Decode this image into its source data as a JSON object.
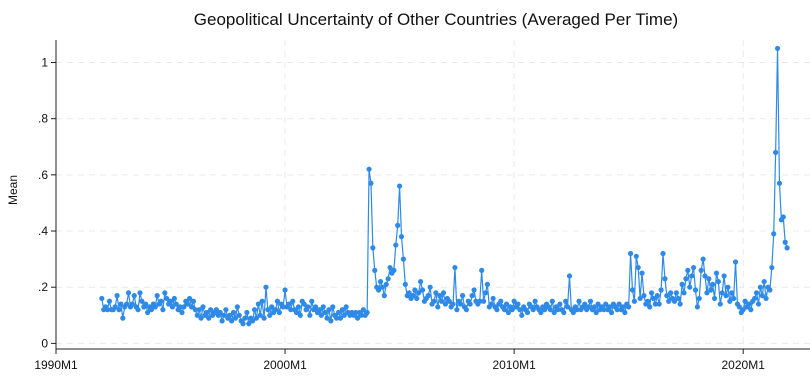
{
  "chart_data": {
    "type": "line",
    "title": "Geopolitical Uncertainty of Other Countries (Averaged Per Time)",
    "xlabel": "",
    "ylabel": "Mean",
    "x_tick_labels": [
      "1990M1",
      "2000M1",
      "2010M1",
      "2020M1"
    ],
    "y_tick_labels": [
      "0",
      ".2",
      ".4",
      ".6",
      ".8",
      "1"
    ],
    "xlim": [
      "1990-01",
      "2022-12"
    ],
    "ylim": [
      -0.02,
      1.08
    ],
    "grid": true,
    "markers": true,
    "series": [
      {
        "color": "#2e8ae6",
        "x_start": "1992-01",
        "frequency": "monthly",
        "values": [
          0.16,
          0.12,
          0.13,
          0.12,
          0.15,
          0.12,
          0.12,
          0.13,
          0.17,
          0.12,
          0.14,
          0.09,
          0.13,
          0.14,
          0.18,
          0.13,
          0.14,
          0.17,
          0.13,
          0.12,
          0.18,
          0.15,
          0.13,
          0.14,
          0.11,
          0.13,
          0.12,
          0.14,
          0.13,
          0.17,
          0.14,
          0.15,
          0.12,
          0.18,
          0.16,
          0.14,
          0.15,
          0.13,
          0.16,
          0.14,
          0.12,
          0.13,
          0.11,
          0.13,
          0.15,
          0.14,
          0.16,
          0.13,
          0.15,
          0.12,
          0.1,
          0.12,
          0.09,
          0.13,
          0.1,
          0.11,
          0.09,
          0.12,
          0.1,
          0.11,
          0.12,
          0.1,
          0.11,
          0.08,
          0.1,
          0.12,
          0.09,
          0.1,
          0.08,
          0.11,
          0.09,
          0.13,
          0.1,
          0.08,
          0.07,
          0.09,
          0.11,
          0.07,
          0.09,
          0.08,
          0.12,
          0.09,
          0.14,
          0.1,
          0.15,
          0.09,
          0.2,
          0.12,
          0.1,
          0.13,
          0.11,
          0.12,
          0.15,
          0.11,
          0.14,
          0.13,
          0.19,
          0.13,
          0.14,
          0.12,
          0.15,
          0.12,
          0.11,
          0.13,
          0.1,
          0.15,
          0.14,
          0.12,
          0.13,
          0.1,
          0.15,
          0.12,
          0.13,
          0.11,
          0.12,
          0.1,
          0.13,
          0.11,
          0.09,
          0.12,
          0.08,
          0.13,
          0.1,
          0.09,
          0.11,
          0.09,
          0.12,
          0.1,
          0.13,
          0.11,
          0.1,
          0.11,
          0.1,
          0.11,
          0.09,
          0.11,
          0.1,
          0.12,
          0.1,
          0.11,
          0.62,
          0.57,
          0.34,
          0.26,
          0.2,
          0.19,
          0.22,
          0.2,
          0.17,
          0.21,
          0.23,
          0.27,
          0.25,
          0.26,
          0.35,
          0.42,
          0.56,
          0.38,
          0.3,
          0.21,
          0.17,
          0.18,
          0.16,
          0.17,
          0.19,
          0.16,
          0.18,
          0.22,
          0.19,
          0.15,
          0.16,
          0.17,
          0.2,
          0.14,
          0.15,
          0.18,
          0.13,
          0.17,
          0.15,
          0.18,
          0.14,
          0.16,
          0.15,
          0.13,
          0.14,
          0.27,
          0.12,
          0.15,
          0.14,
          0.17,
          0.13,
          0.12,
          0.15,
          0.14,
          0.17,
          0.19,
          0.15,
          0.14,
          0.15,
          0.26,
          0.15,
          0.18,
          0.21,
          0.13,
          0.14,
          0.16,
          0.13,
          0.12,
          0.14,
          0.15,
          0.13,
          0.12,
          0.14,
          0.11,
          0.13,
          0.12,
          0.15,
          0.13,
          0.14,
          0.12,
          0.1,
          0.13,
          0.12,
          0.11,
          0.14,
          0.13,
          0.12,
          0.15,
          0.13,
          0.12,
          0.11,
          0.13,
          0.12,
          0.14,
          0.13,
          0.12,
          0.15,
          0.11,
          0.13,
          0.12,
          0.14,
          0.12,
          0.11,
          0.15,
          0.13,
          0.24,
          0.12,
          0.11,
          0.13,
          0.12,
          0.15,
          0.12,
          0.13,
          0.14,
          0.12,
          0.13,
          0.15,
          0.12,
          0.13,
          0.11,
          0.14,
          0.12,
          0.13,
          0.12,
          0.14,
          0.12,
          0.13,
          0.11,
          0.14,
          0.13,
          0.12,
          0.14,
          0.12,
          0.13,
          0.11,
          0.14,
          0.13,
          0.32,
          0.19,
          0.15,
          0.31,
          0.27,
          0.16,
          0.25,
          0.17,
          0.14,
          0.15,
          0.13,
          0.18,
          0.16,
          0.14,
          0.17,
          0.14,
          0.19,
          0.32,
          0.23,
          0.17,
          0.15,
          0.18,
          0.16,
          0.15,
          0.18,
          0.16,
          0.14,
          0.21,
          0.18,
          0.23,
          0.26,
          0.2,
          0.24,
          0.27,
          0.19,
          0.13,
          0.16,
          0.26,
          0.3,
          0.24,
          0.18,
          0.23,
          0.19,
          0.21,
          0.16,
          0.25,
          0.22,
          0.14,
          0.18,
          0.24,
          0.17,
          0.2,
          0.15,
          0.18,
          0.16,
          0.29,
          0.14,
          0.13,
          0.11,
          0.12,
          0.15,
          0.13,
          0.14,
          0.12,
          0.15,
          0.16,
          0.18,
          0.14,
          0.2,
          0.17,
          0.22,
          0.16,
          0.2,
          0.19,
          0.27,
          0.39,
          0.68,
          1.05,
          0.57,
          0.44,
          0.45,
          0.36,
          0.34
        ]
      }
    ]
  }
}
